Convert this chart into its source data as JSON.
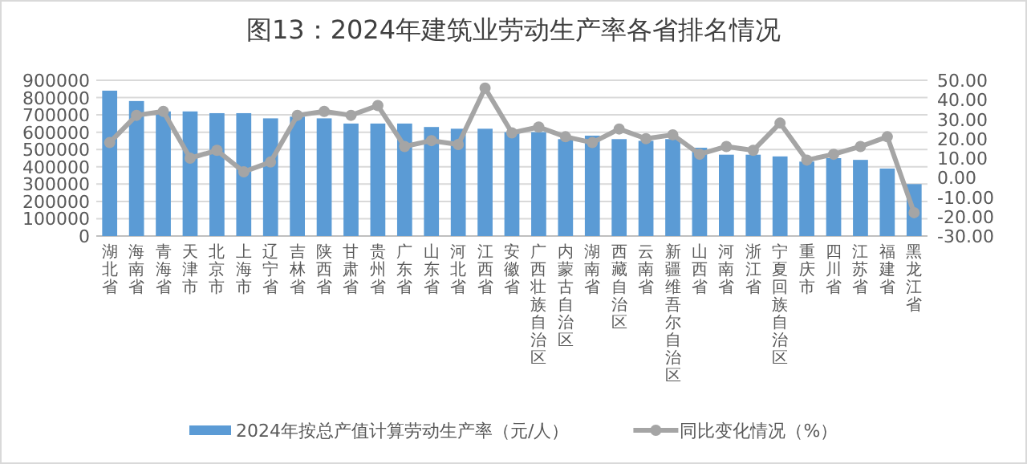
{
  "chart_data": {
    "type": "bar",
    "title": "图13：2024年建筑业劳动生产率各省排名情况",
    "categories": [
      "湖北省",
      "海南省",
      "青海省",
      "天津市",
      "北京市",
      "上海市",
      "辽宁省",
      "吉林省",
      "陕西省",
      "甘肃省",
      "贵州省",
      "广东省",
      "山东省",
      "河北省",
      "江西省",
      "安徽省",
      "广西壮族自治区",
      "内蒙古自治区",
      "湖南省",
      "西藏自治区",
      "云南省",
      "新疆维吾尔自治区",
      "山西省",
      "河南省",
      "浙江省",
      "宁夏回族自治区",
      "重庆市",
      "四川省",
      "江苏省",
      "福建省",
      "黑龙江省"
    ],
    "series": [
      {
        "name": "2024年按总产值计算劳动生产率（元/人）",
        "color": "#5b9bd5",
        "values": [
          840000,
          780000,
          720000,
          720000,
          710000,
          710000,
          680000,
          690000,
          680000,
          650000,
          650000,
          650000,
          630000,
          620000,
          620000,
          600000,
          600000,
          560000,
          580000,
          560000,
          550000,
          560000,
          510000,
          470000,
          470000,
          460000,
          430000,
          450000,
          440000,
          390000,
          300000
        ]
      },
      {
        "name": "同比变化情况（%）",
        "type": "line",
        "axis": "y2",
        "color": "#a5a5a5",
        "marker": "circle",
        "values": [
          18,
          32,
          34,
          10,
          14,
          3,
          8,
          32,
          34,
          32,
          37,
          16,
          19,
          17,
          46,
          23,
          26,
          21,
          18,
          25,
          20,
          22,
          12,
          16,
          14,
          28,
          9,
          12,
          16,
          21,
          -18
        ]
      }
    ],
    "ylim": [
      0,
      900000
    ],
    "yticks": [
      0,
      100000,
      200000,
      300000,
      400000,
      500000,
      600000,
      700000,
      800000,
      900000
    ],
    "y2lim": [
      -30,
      50
    ],
    "y2ticks": [
      {
        "value": -30,
        "label": "-30.00"
      },
      {
        "value": -20,
        "label": "-20.00"
      },
      {
        "value": -10,
        "label": "-10.00"
      },
      {
        "value": 0,
        "label": "0.00"
      },
      {
        "value": 10,
        "label": "10.00"
      },
      {
        "value": 20,
        "label": "20.00"
      },
      {
        "value": 30,
        "label": "30.00"
      },
      {
        "value": 40,
        "label": "40.00"
      },
      {
        "value": 50,
        "label": "50.00"
      }
    ],
    "grid": "y",
    "legend": "bottom"
  }
}
